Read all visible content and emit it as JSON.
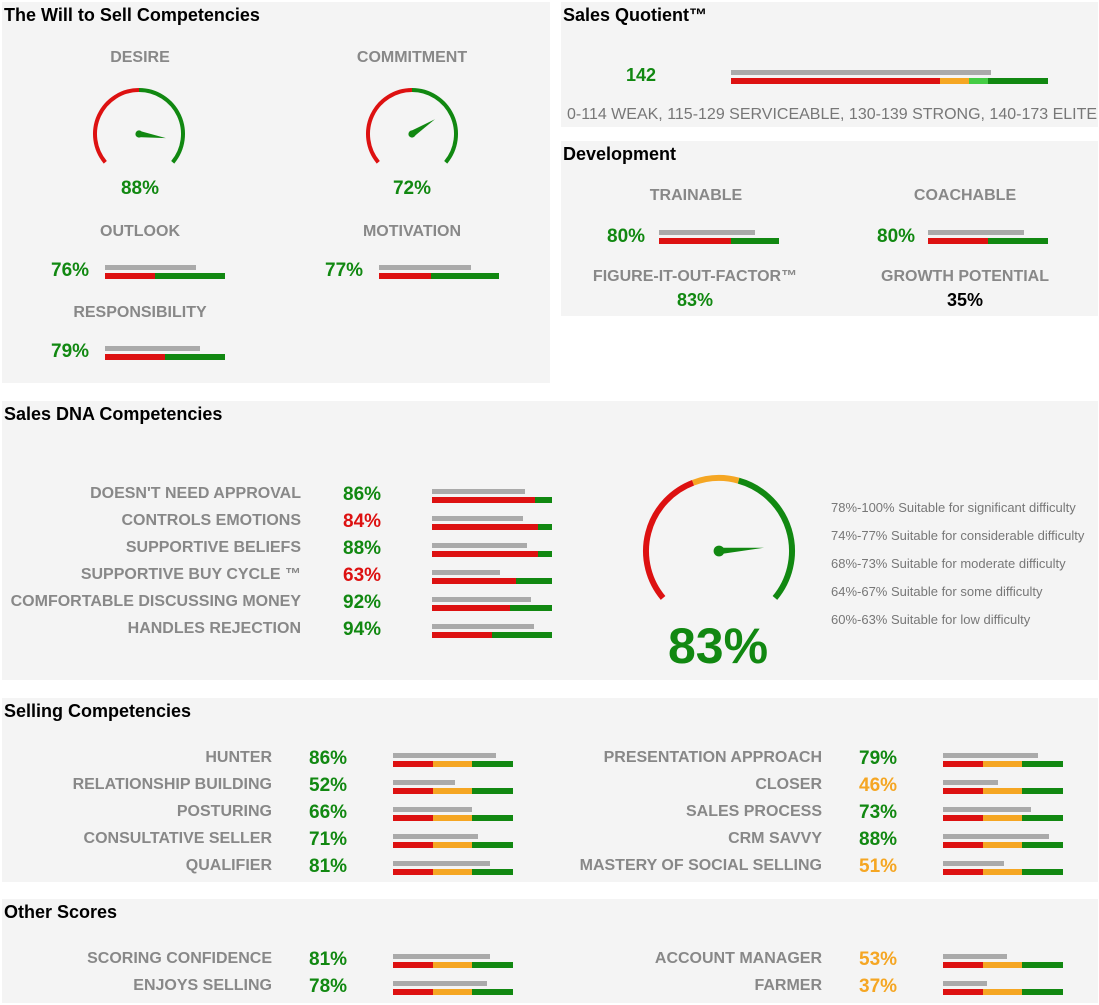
{
  "colors": {
    "green": "#118811",
    "red": "#dd1111",
    "orange": "#f5a623",
    "gray": "#aaaaaa",
    "black": "#000000"
  },
  "will_to_sell": {
    "title": "The Will to Sell Competencies",
    "gauges": [
      {
        "label": "DESIRE",
        "value": "88%",
        "pct": 88,
        "color": "green"
      },
      {
        "label": "COMMITMENT",
        "value": "72%",
        "pct": 72,
        "color": "green"
      }
    ],
    "bars": [
      {
        "label": "OUTLOOK",
        "value": "76%",
        "pct": 76,
        "color": "green",
        "scale": [
          0.42,
          1.0
        ]
      },
      {
        "label": "MOTIVATION",
        "value": "77%",
        "pct": 77,
        "color": "green",
        "scale": [
          0.43,
          1.0
        ]
      },
      {
        "label": "RESPONSIBILITY",
        "value": "79%",
        "pct": 79,
        "color": "green",
        "scale": [
          0.5,
          1.0
        ]
      }
    ]
  },
  "sales_quotient": {
    "title": "Sales Quotient™",
    "value": "142",
    "score": 142,
    "scale_text": "0-114 WEAK, 115-129 SERVICEABLE, 130-139 STRONG, 140-173 ELITE",
    "segments": [
      {
        "color": "red",
        "frac": 0.66
      },
      {
        "color": "orange",
        "frac": 0.09
      },
      {
        "color": "lightgreen",
        "frac": 0.06
      },
      {
        "color": "green",
        "frac": 0.19
      }
    ],
    "fill": 0.82
  },
  "development": {
    "title": "Development",
    "bars": [
      {
        "label": "TRAINABLE",
        "value": "80%",
        "pct": 80,
        "color": "green",
        "scale": [
          0.6,
          1.0
        ]
      },
      {
        "label": "COACHABLE",
        "value": "80%",
        "pct": 80,
        "color": "green",
        "scale": [
          0.5,
          1.0
        ]
      }
    ],
    "figure_label": "FIGURE-IT-OUT-FACTOR™",
    "figure_value": "83%",
    "growth_label": "GROWTH POTENTIAL",
    "growth_value": "35%"
  },
  "sales_dna": {
    "title": "Sales DNA Competencies",
    "items": [
      {
        "label": "DOESN'T NEED APPROVAL",
        "value": "86%",
        "pct": 86,
        "color": "green",
        "scale": [
          0.86,
          1.0
        ]
      },
      {
        "label": "CONTROLS EMOTIONS",
        "value": "84%",
        "pct": 84,
        "color": "red",
        "scale": [
          0.88,
          1.0
        ]
      },
      {
        "label": "SUPPORTIVE BELIEFS",
        "value": "88%",
        "pct": 88,
        "color": "green",
        "scale": [
          0.88,
          1.0
        ]
      },
      {
        "label": "SUPPORTIVE BUY CYCLE ™",
        "value": "63%",
        "pct": 63,
        "color": "red",
        "scale": [
          0.7,
          1.0
        ]
      },
      {
        "label": "COMFORTABLE DISCUSSING MONEY",
        "value": "92%",
        "pct": 92,
        "color": "green",
        "scale": [
          0.65,
          1.0
        ]
      },
      {
        "label": "HANDLES REJECTION",
        "value": "94%",
        "pct": 94,
        "color": "green",
        "scale": [
          0.5,
          1.0
        ]
      }
    ],
    "overall": "83%",
    "overall_pct": 83,
    "legend": [
      "78%-100% Suitable for significant difficulty",
      "74%-77% Suitable for considerable difficulty",
      "68%-73% Suitable for moderate difficulty",
      "64%-67% Suitable for some difficulty",
      "60%-63% Suitable for low difficulty"
    ]
  },
  "selling": {
    "title": "Selling Competencies",
    "left": [
      {
        "label": "HUNTER",
        "value": "86%",
        "pct": 86,
        "color": "green"
      },
      {
        "label": "RELATIONSHIP BUILDING",
        "value": "52%",
        "pct": 52,
        "color": "green"
      },
      {
        "label": "POSTURING",
        "value": "66%",
        "pct": 66,
        "color": "green"
      },
      {
        "label": "CONSULTATIVE SELLER",
        "value": "71%",
        "pct": 71,
        "color": "green"
      },
      {
        "label": "QUALIFIER",
        "value": "81%",
        "pct": 81,
        "color": "green"
      }
    ],
    "right": [
      {
        "label": "PRESENTATION APPROACH",
        "value": "79%",
        "pct": 79,
        "color": "green"
      },
      {
        "label": "CLOSER",
        "value": "46%",
        "pct": 46,
        "color": "orange"
      },
      {
        "label": "SALES PROCESS",
        "value": "73%",
        "pct": 73,
        "color": "green"
      },
      {
        "label": "CRM SAVVY",
        "value": "88%",
        "pct": 88,
        "color": "green"
      },
      {
        "label": "MASTERY OF SOCIAL SELLING",
        "value": "51%",
        "pct": 51,
        "color": "orange"
      }
    ]
  },
  "other": {
    "title": "Other Scores",
    "left": [
      {
        "label": "SCORING CONFIDENCE",
        "value": "81%",
        "pct": 81,
        "color": "green"
      },
      {
        "label": "ENJOYS SELLING",
        "value": "78%",
        "pct": 78,
        "color": "green"
      }
    ],
    "right": [
      {
        "label": "ACCOUNT MANAGER",
        "value": "53%",
        "pct": 53,
        "color": "orange"
      },
      {
        "label": "FARMER",
        "value": "37%",
        "pct": 37,
        "color": "orange"
      }
    ]
  }
}
